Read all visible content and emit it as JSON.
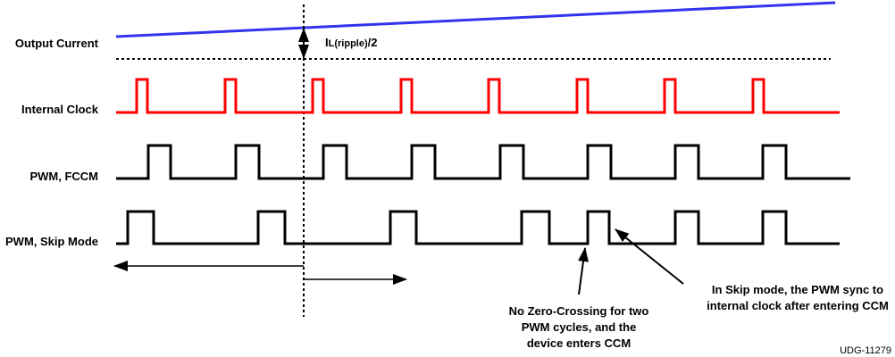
{
  "signals": {
    "output_current": "Output Current",
    "internal_clock": "Internal Clock",
    "pwm_fccm": "PWM, FCCM",
    "pwm_skip": "PWM, Skip Mode"
  },
  "ripple_label": {
    "main": "I",
    "sub": "L(ripple)",
    "suffix": "/2"
  },
  "annotations": {
    "zero_crossing": [
      "No Zero-Crossing for two",
      "PWM cycles, and the",
      "device enters CCM"
    ],
    "skip_sync": [
      "In Skip mode, the PWM sync to",
      "internal clock after entering CCM"
    ]
  },
  "figure_id": "UDG-11279",
  "colors": {
    "current": "#3333ee",
    "clock": "#ff0000",
    "pwm": "#000000"
  }
}
